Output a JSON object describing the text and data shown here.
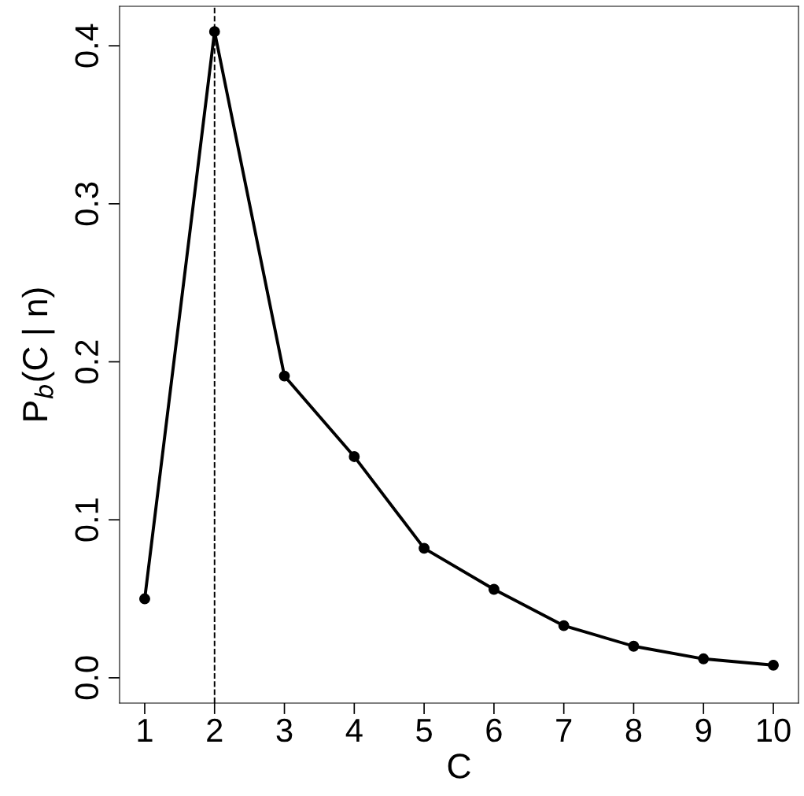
{
  "chart_data": {
    "type": "line",
    "xlabel": "C",
    "ylabel": "P$_{b}$(C | n)",
    "x": [
      1,
      2,
      3,
      4,
      5,
      6,
      7,
      8,
      9,
      10
    ],
    "series": [
      {
        "color": "#000000",
        "values": [
          0.05,
          0.409,
          0.191,
          0.14,
          0.082,
          0.056,
          0.033,
          0.02,
          0.012,
          0.008
        ]
      }
    ],
    "xlim": [
      0.64,
      10.36
    ],
    "xticks": [
      1,
      2,
      3,
      4,
      5,
      6,
      7,
      8,
      9,
      10
    ],
    "ylim": [
      -0.016,
      0.425
    ],
    "yticks": [
      {
        "value": 0,
        "label": "0.0"
      },
      {
        "value": 0.1,
        "label": "0.1"
      },
      {
        "value": 0.2,
        "label": "0.2"
      },
      {
        "value": 0.3,
        "label": "0.3"
      },
      {
        "value": 0.4,
        "label": "0.4"
      }
    ],
    "ref_lines": [
      {
        "axis": "x",
        "value": 2,
        "color": "#000000",
        "line_style": "dashed"
      }
    ],
    "marker": "circle",
    "line_style": "solid",
    "grid": false,
    "legend": false
  }
}
